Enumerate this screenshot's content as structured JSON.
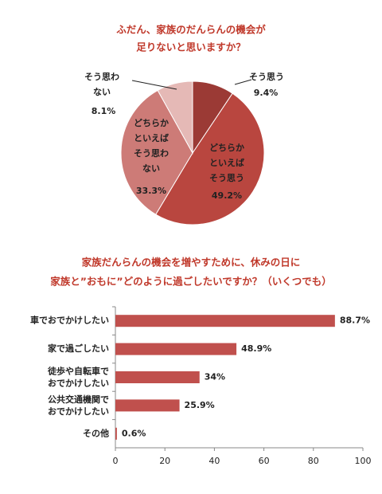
{
  "chart_data": [
    {
      "type": "pie",
      "title_lines": [
        "ふだん、家族のだんらんの機会が",
        "足りないと思いますか？"
      ],
      "categories": [
        "そう思う",
        "どちらか\nといえば\nそう思う",
        "どちらか\nといえば\nそう思わ\nない",
        "そう思わ\nない"
      ],
      "values": [
        9.4,
        49.2,
        33.3,
        8.1
      ],
      "value_labels": [
        "9.4%",
        "49.2%",
        "33.3%",
        "8.1%"
      ],
      "colors": [
        "#9b3a35",
        "#b9463f",
        "#cd7b77",
        "#e5b9b6"
      ]
    },
    {
      "type": "hbar",
      "title_lines": [
        "家族だんらんの機会を増やすために、休みの日に",
        "家族と”おもに”どのように過ごしたいですか？（いくつでも）"
      ],
      "categories": [
        "車でおでかけしたい",
        "家で過ごしたい",
        "徒歩や自転車で\nおでかけしたい",
        "公共交通機関で\nおでかけしたい",
        "その他"
      ],
      "values": [
        88.7,
        48.9,
        34,
        25.9,
        0.6
      ],
      "value_labels": [
        "88.7%",
        "48.9%",
        "34%",
        "25.9%",
        "0.6%"
      ],
      "color": "#c0504d",
      "xlim": [
        0,
        100
      ],
      "xticks": [
        0,
        20,
        40,
        60,
        80,
        100
      ]
    }
  ]
}
